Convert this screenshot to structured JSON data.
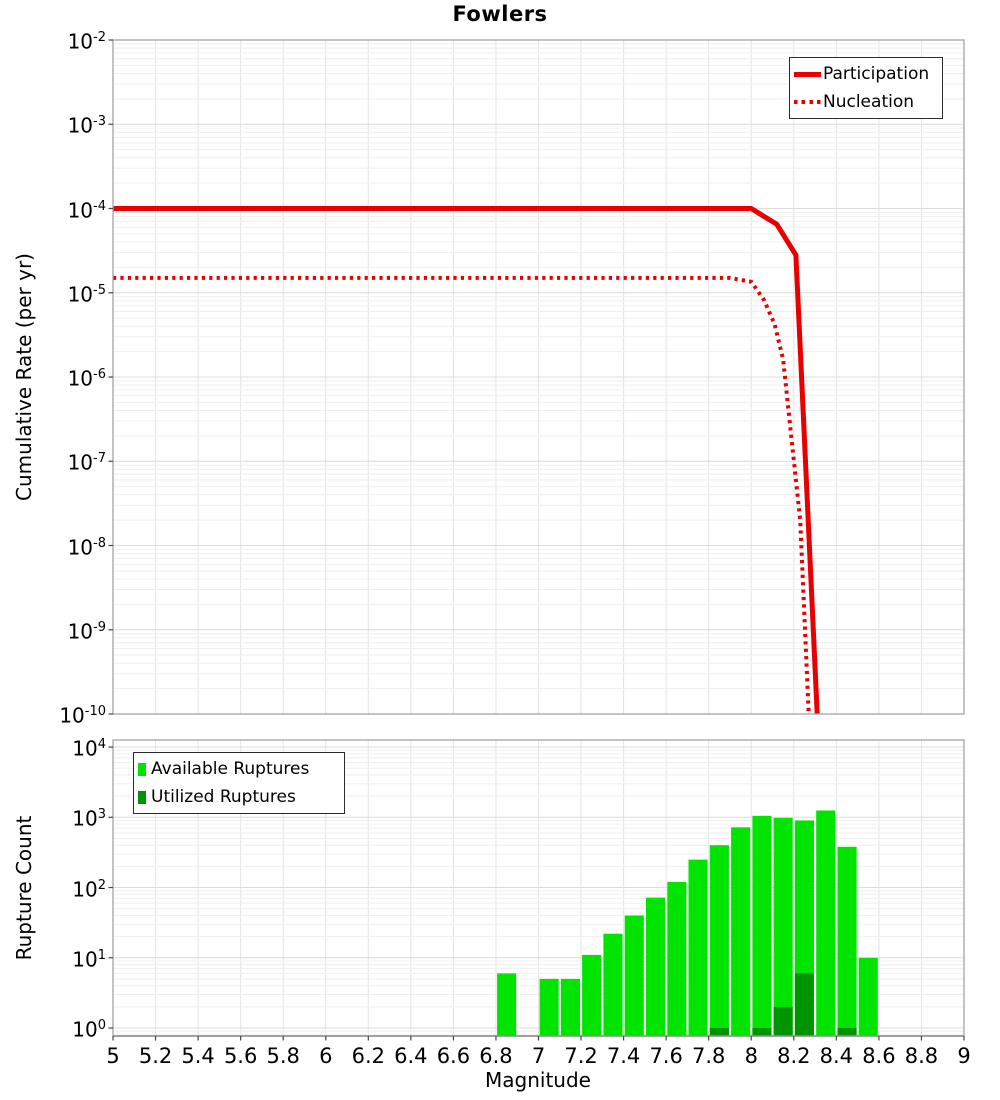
{
  "figure": {
    "title": "Fowlers",
    "background": "#ffffff",
    "plot_border_color": "#a3a3a3",
    "axis_line_color": "#8c8c8c",
    "grid_major_color": "#dcdcdc",
    "grid_minor_color": "#efefef",
    "grid_vertical_color": "#e4e4e4",
    "tick_color": "#444444"
  },
  "chart_data": [
    {
      "type": "line",
      "panel": "top",
      "title": "Fowlers",
      "xlabel": "",
      "ylabel": "Cumulative Rate (per yr)",
      "xlim": [
        5,
        9
      ],
      "ylim": [
        1e-10,
        0.01
      ],
      "grid": true,
      "x_ticks": [
        5,
        5.2,
        5.4,
        5.6,
        5.8,
        6,
        6.2,
        6.4,
        6.6,
        6.8,
        7,
        7.2,
        7.4,
        7.6,
        7.8,
        8,
        8.2,
        8.4,
        8.6,
        8.8,
        9
      ],
      "y_tick_exponents": [
        -2,
        -3,
        -4,
        -5,
        -6,
        -7,
        -8,
        -9,
        -10
      ],
      "legend": {
        "position": "top-right",
        "entries": [
          "Participation",
          "Nucleation"
        ]
      },
      "series": [
        {
          "name": "Participation",
          "line_style": "solid",
          "color": "#e60000",
          "points": [
            [
              5.0,
              0.0001
            ],
            [
              8.0,
              0.0001
            ],
            [
              8.12,
              6.5e-05
            ],
            [
              8.21,
              2.8e-05
            ],
            [
              8.31,
              1e-10
            ]
          ]
        },
        {
          "name": "Nucleation",
          "line_style": "dotted",
          "color": "#e60000",
          "points": [
            [
              5.0,
              1.5e-05
            ],
            [
              7.9,
              1.5e-05
            ],
            [
              8.0,
              1.35e-05
            ],
            [
              8.06,
              8.2e-06
            ],
            [
              8.11,
              4.2e-06
            ],
            [
              8.15,
              1.6e-06
            ],
            [
              8.18,
              3.1e-07
            ],
            [
              8.23,
              2e-08
            ],
            [
              8.27,
              1e-10
            ]
          ]
        }
      ]
    },
    {
      "type": "bar",
      "panel": "bottom",
      "xlabel": "Magnitude",
      "ylabel": "Rupture Count",
      "xlim": [
        5,
        9
      ],
      "ylim": [
        0.77,
        12600
      ],
      "bin_width": 0.1,
      "grid": true,
      "x_ticks": [
        5,
        5.2,
        5.4,
        5.6,
        5.8,
        6,
        6.2,
        6.4,
        6.6,
        6.8,
        7,
        7.2,
        7.4,
        7.6,
        7.8,
        8,
        8.2,
        8.4,
        8.6,
        8.8,
        9
      ],
      "y_tick_exponents": [
        4,
        3,
        2,
        1,
        0
      ],
      "legend": {
        "position": "top-left",
        "entries": [
          "Available Ruptures",
          "Utilized Ruptures"
        ]
      },
      "bins": [
        6.8,
        7.0,
        7.1,
        7.2,
        7.3,
        7.4,
        7.5,
        7.6,
        7.7,
        7.8,
        7.9,
        8.0,
        8.1,
        8.2,
        8.3,
        8.4,
        8.5
      ],
      "series": [
        {
          "name": "Available Ruptures",
          "color": "#00e400",
          "values": [
            6,
            5,
            5,
            11,
            22,
            40,
            72,
            120,
            250,
            400,
            720,
            1050,
            980,
            900,
            1250,
            380,
            10
          ]
        },
        {
          "name": "Utilized Ruptures",
          "color": "#009400",
          "values": [
            0,
            0,
            0,
            0,
            0,
            0,
            0,
            0,
            0,
            1,
            0,
            1,
            2,
            6,
            0,
            1,
            0
          ]
        }
      ]
    }
  ]
}
